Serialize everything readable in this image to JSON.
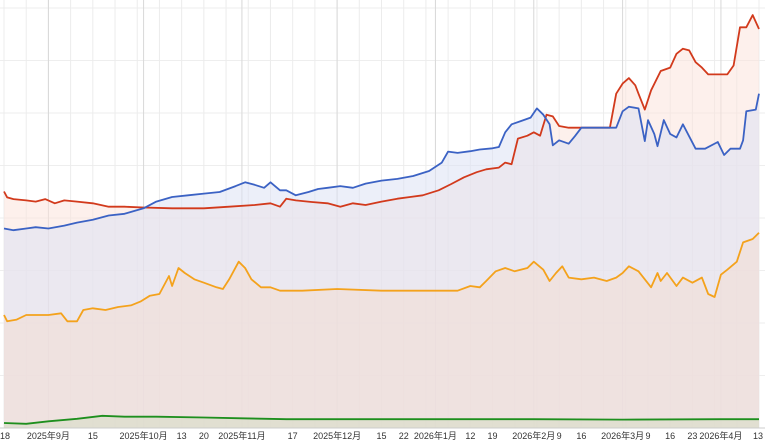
{
  "chart_data": {
    "type": "area",
    "title": "",
    "xlabel": "",
    "ylabel": "",
    "grid": {
      "vertical": true,
      "horizontal": true
    },
    "legend": "none",
    "x_axis": {
      "start": "2025-08-18",
      "end": "2026-04-13",
      "ticks": [
        {
          "date": "2025-08-18",
          "label": "18"
        },
        {
          "date": "2025-09-01",
          "label": "2025年9月"
        },
        {
          "date": "2025-09-15",
          "label": "15"
        },
        {
          "date": "2025-10-01",
          "label": "2025年10月"
        },
        {
          "date": "2025-10-13",
          "label": "13"
        },
        {
          "date": "2025-10-20",
          "label": "20"
        },
        {
          "date": "2025-11-01",
          "label": "2025年11月"
        },
        {
          "date": "2025-11-17",
          "label": "17"
        },
        {
          "date": "2025-12-01",
          "label": "2025年12月"
        },
        {
          "date": "2025-12-15",
          "label": "15"
        },
        {
          "date": "2025-12-22",
          "label": "22"
        },
        {
          "date": "2026-01-01",
          "label": "2026年1月"
        },
        {
          "date": "2026-01-12",
          "label": "12"
        },
        {
          "date": "2026-01-19",
          "label": "19"
        },
        {
          "date": "2026-02-01",
          "label": "2026年2月"
        },
        {
          "date": "2026-02-09",
          "label": "9"
        },
        {
          "date": "2026-02-16",
          "label": "16"
        },
        {
          "date": "2026-03-01",
          "label": "2026年3月"
        },
        {
          "date": "2026-03-09",
          "label": "9"
        },
        {
          "date": "2026-03-16",
          "label": "16"
        },
        {
          "date": "2026-03-23",
          "label": "23"
        },
        {
          "date": "2026-04-01",
          "label": "2026年4月"
        },
        {
          "date": "2026-04-13",
          "label": "13"
        }
      ]
    },
    "y_axis": {
      "range": [
        0,
        100
      ],
      "labels_shown": false
    },
    "series": [
      {
        "color": "#d23a1c",
        "fill": "#fbe3dc",
        "points": [
          [
            "2025-08-18",
            56.3
          ],
          [
            "2025-08-19",
            54.9
          ],
          [
            "2025-08-21",
            54.5
          ],
          [
            "2025-08-25",
            54.2
          ],
          [
            "2025-08-28",
            53.9
          ],
          [
            "2025-08-31",
            54.5
          ],
          [
            "2025-09-03",
            53.5
          ],
          [
            "2025-09-06",
            54.2
          ],
          [
            "2025-09-10",
            53.9
          ],
          [
            "2025-09-15",
            53.5
          ],
          [
            "2025-09-20",
            52.7
          ],
          [
            "2025-09-25",
            52.7
          ],
          [
            "2025-10-01",
            52.5
          ],
          [
            "2025-10-10",
            52.3
          ],
          [
            "2025-10-20",
            52.3
          ],
          [
            "2025-10-28",
            52.7
          ],
          [
            "2025-11-05",
            53.1
          ],
          [
            "2025-11-10",
            53.5
          ],
          [
            "2025-11-13",
            52.7
          ],
          [
            "2025-11-15",
            54.6
          ],
          [
            "2025-11-18",
            54.2
          ],
          [
            "2025-11-23",
            53.8
          ],
          [
            "2025-11-28",
            53.5
          ],
          [
            "2025-12-02",
            52.7
          ],
          [
            "2025-12-06",
            53.5
          ],
          [
            "2025-12-10",
            53.1
          ],
          [
            "2025-12-15",
            53.9
          ],
          [
            "2025-12-20",
            54.6
          ],
          [
            "2025-12-24",
            55.0
          ],
          [
            "2025-12-28",
            55.4
          ],
          [
            "2026-01-02",
            56.6
          ],
          [
            "2026-01-06",
            58.1
          ],
          [
            "2026-01-10",
            59.7
          ],
          [
            "2026-01-14",
            60.9
          ],
          [
            "2026-01-17",
            61.6
          ],
          [
            "2026-01-21",
            62.0
          ],
          [
            "2026-01-23",
            63.2
          ],
          [
            "2026-01-25",
            62.8
          ],
          [
            "2026-01-27",
            68.9
          ],
          [
            "2026-01-30",
            69.6
          ],
          [
            "2026-02-01",
            70.4
          ],
          [
            "2026-02-03",
            69.6
          ],
          [
            "2026-02-05",
            74.6
          ],
          [
            "2026-02-07",
            74.2
          ],
          [
            "2026-02-09",
            71.9
          ],
          [
            "2026-02-12",
            71.5
          ],
          [
            "2026-02-16",
            71.5
          ],
          [
            "2026-02-22",
            71.5
          ],
          [
            "2026-02-25",
            71.5
          ],
          [
            "2026-02-27",
            79.6
          ],
          [
            "2026-03-01",
            82.0
          ],
          [
            "2026-03-03",
            83.3
          ],
          [
            "2026-03-05",
            81.6
          ],
          [
            "2026-03-06",
            79.6
          ],
          [
            "2026-03-08",
            75.8
          ],
          [
            "2026-03-10",
            80.4
          ],
          [
            "2026-03-13",
            85.0
          ],
          [
            "2026-03-16",
            85.8
          ],
          [
            "2026-03-18",
            89.1
          ],
          [
            "2026-03-20",
            90.3
          ],
          [
            "2026-03-22",
            89.9
          ],
          [
            "2026-03-24",
            87.1
          ],
          [
            "2026-03-26",
            85.8
          ],
          [
            "2026-03-28",
            84.2
          ],
          [
            "2026-04-01",
            84.2
          ],
          [
            "2026-04-03",
            84.2
          ],
          [
            "2026-04-05",
            86.3
          ],
          [
            "2026-04-07",
            95.4
          ],
          [
            "2026-04-09",
            95.4
          ],
          [
            "2026-04-11",
            98.3
          ],
          [
            "2026-04-13",
            95.0
          ]
        ]
      },
      {
        "color": "#3b62c4",
        "fill": "#dde2f4",
        "points": [
          [
            "2025-08-18",
            47.5
          ],
          [
            "2025-08-21",
            47.1
          ],
          [
            "2025-08-25",
            47.5
          ],
          [
            "2025-08-28",
            47.8
          ],
          [
            "2025-09-01",
            47.5
          ],
          [
            "2025-09-06",
            48.2
          ],
          [
            "2025-09-10",
            48.9
          ],
          [
            "2025-09-15",
            49.6
          ],
          [
            "2025-09-20",
            50.6
          ],
          [
            "2025-09-25",
            51.0
          ],
          [
            "2025-10-01",
            52.3
          ],
          [
            "2025-10-05",
            53.9
          ],
          [
            "2025-10-10",
            55.0
          ],
          [
            "2025-10-15",
            55.4
          ],
          [
            "2025-10-20",
            55.8
          ],
          [
            "2025-10-25",
            56.2
          ],
          [
            "2025-10-30",
            57.6
          ],
          [
            "2025-11-02",
            58.5
          ],
          [
            "2025-11-05",
            57.9
          ],
          [
            "2025-11-08",
            57.2
          ],
          [
            "2025-11-10",
            58.5
          ],
          [
            "2025-11-13",
            56.6
          ],
          [
            "2025-11-15",
            56.6
          ],
          [
            "2025-11-18",
            55.4
          ],
          [
            "2025-11-22",
            56.2
          ],
          [
            "2025-11-25",
            56.9
          ],
          [
            "2025-11-28",
            57.2
          ],
          [
            "2025-12-02",
            57.6
          ],
          [
            "2025-12-06",
            57.2
          ],
          [
            "2025-12-10",
            58.2
          ],
          [
            "2025-12-15",
            58.9
          ],
          [
            "2025-12-20",
            59.3
          ],
          [
            "2025-12-25",
            60.0
          ],
          [
            "2025-12-30",
            61.2
          ],
          [
            "2026-01-03",
            63.2
          ],
          [
            "2026-01-05",
            65.8
          ],
          [
            "2026-01-08",
            65.5
          ],
          [
            "2026-01-12",
            65.9
          ],
          [
            "2026-01-15",
            66.3
          ],
          [
            "2026-01-19",
            66.6
          ],
          [
            "2026-01-21",
            66.9
          ],
          [
            "2026-01-23",
            70.4
          ],
          [
            "2026-01-25",
            72.3
          ],
          [
            "2026-01-28",
            73.1
          ],
          [
            "2026-01-31",
            73.9
          ],
          [
            "2026-02-02",
            76.1
          ],
          [
            "2026-02-04",
            74.6
          ],
          [
            "2026-02-06",
            72.3
          ],
          [
            "2026-02-07",
            67.3
          ],
          [
            "2026-02-09",
            68.5
          ],
          [
            "2026-02-12",
            67.7
          ],
          [
            "2026-02-14",
            69.5
          ],
          [
            "2026-02-16",
            71.5
          ],
          [
            "2026-02-22",
            71.5
          ],
          [
            "2026-02-27",
            71.5
          ],
          [
            "2026-03-01",
            75.4
          ],
          [
            "2026-03-03",
            76.5
          ],
          [
            "2026-03-06",
            76.1
          ],
          [
            "2026-03-08",
            68.3
          ],
          [
            "2026-03-09",
            73.3
          ],
          [
            "2026-03-11",
            70.0
          ],
          [
            "2026-03-12",
            67.1
          ],
          [
            "2026-03-14",
            73.3
          ],
          [
            "2026-03-16",
            70.0
          ],
          [
            "2026-03-18",
            69.2
          ],
          [
            "2026-03-20",
            72.3
          ],
          [
            "2026-03-24",
            66.5
          ],
          [
            "2026-03-27",
            66.5
          ],
          [
            "2026-03-31",
            68.1
          ],
          [
            "2026-04-02",
            65.0
          ],
          [
            "2026-04-04",
            66.5
          ],
          [
            "2026-04-07",
            66.5
          ],
          [
            "2026-04-08",
            68.5
          ],
          [
            "2026-04-09",
            75.4
          ],
          [
            "2026-04-12",
            75.8
          ],
          [
            "2026-04-13",
            79.6
          ]
        ]
      },
      {
        "color": "#f4a21c",
        "fill": "#f3ddd4",
        "points": [
          [
            "2025-08-18",
            26.9
          ],
          [
            "2025-08-19",
            25.4
          ],
          [
            "2025-08-22",
            25.8
          ],
          [
            "2025-08-25",
            26.9
          ],
          [
            "2025-09-01",
            26.9
          ],
          [
            "2025-09-05",
            27.3
          ],
          [
            "2025-09-07",
            25.4
          ],
          [
            "2025-09-10",
            25.4
          ],
          [
            "2025-09-12",
            28.1
          ],
          [
            "2025-09-15",
            28.5
          ],
          [
            "2025-09-19",
            28.1
          ],
          [
            "2025-09-23",
            28.8
          ],
          [
            "2025-09-27",
            29.2
          ],
          [
            "2025-09-30",
            30.1
          ],
          [
            "2025-10-03",
            31.5
          ],
          [
            "2025-10-06",
            31.9
          ],
          [
            "2025-10-09",
            36.2
          ],
          [
            "2025-10-10",
            33.8
          ],
          [
            "2025-10-12",
            38.1
          ],
          [
            "2025-10-14",
            36.9
          ],
          [
            "2025-10-17",
            35.4
          ],
          [
            "2025-10-20",
            34.6
          ],
          [
            "2025-10-24",
            33.5
          ],
          [
            "2025-10-26",
            33.1
          ],
          [
            "2025-10-28",
            35.4
          ],
          [
            "2025-10-31",
            39.6
          ],
          [
            "2025-11-02",
            38.1
          ],
          [
            "2025-11-04",
            35.4
          ],
          [
            "2025-11-07",
            33.5
          ],
          [
            "2025-11-10",
            33.5
          ],
          [
            "2025-11-13",
            32.7
          ],
          [
            "2025-11-20",
            32.7
          ],
          [
            "2025-12-01",
            33.1
          ],
          [
            "2025-12-15",
            32.7
          ],
          [
            "2026-01-01",
            32.7
          ],
          [
            "2026-01-08",
            32.7
          ],
          [
            "2026-01-12",
            33.8
          ],
          [
            "2026-01-15",
            33.5
          ],
          [
            "2026-01-17",
            35.0
          ],
          [
            "2026-01-20",
            37.3
          ],
          [
            "2026-01-23",
            38.1
          ],
          [
            "2026-01-26",
            37.3
          ],
          [
            "2026-01-30",
            38.1
          ],
          [
            "2026-02-01",
            39.6
          ],
          [
            "2026-02-04",
            37.7
          ],
          [
            "2026-02-06",
            35.0
          ],
          [
            "2026-02-08",
            36.9
          ],
          [
            "2026-02-10",
            38.5
          ],
          [
            "2026-02-12",
            35.8
          ],
          [
            "2026-02-16",
            35.4
          ],
          [
            "2026-02-20",
            35.8
          ],
          [
            "2026-02-24",
            35.0
          ],
          [
            "2026-02-27",
            35.8
          ],
          [
            "2026-03-01",
            36.9
          ],
          [
            "2026-03-03",
            38.5
          ],
          [
            "2026-03-06",
            37.3
          ],
          [
            "2026-03-08",
            35.4
          ],
          [
            "2026-03-10",
            33.5
          ],
          [
            "2026-03-12",
            36.9
          ],
          [
            "2026-03-13",
            35.0
          ],
          [
            "2026-03-15",
            36.9
          ],
          [
            "2026-03-18",
            33.8
          ],
          [
            "2026-03-20",
            35.8
          ],
          [
            "2026-03-23",
            34.6
          ],
          [
            "2026-03-26",
            35.8
          ],
          [
            "2026-03-28",
            31.9
          ],
          [
            "2026-03-30",
            31.2
          ],
          [
            "2026-04-01",
            36.5
          ],
          [
            "2026-04-03",
            37.7
          ],
          [
            "2026-04-06",
            39.6
          ],
          [
            "2026-04-08",
            44.2
          ],
          [
            "2026-04-11",
            45.0
          ],
          [
            "2026-04-13",
            46.5
          ]
        ]
      },
      {
        "color": "#1e8f1e",
        "fill": "#d6dcc4",
        "points": [
          [
            "2025-08-18",
            1.2
          ],
          [
            "2025-08-25",
            1.0
          ],
          [
            "2025-09-01",
            1.6
          ],
          [
            "2025-09-10",
            2.2
          ],
          [
            "2025-09-18",
            2.9
          ],
          [
            "2025-09-25",
            2.7
          ],
          [
            "2025-10-05",
            2.7
          ],
          [
            "2025-10-20",
            2.5
          ],
          [
            "2025-11-01",
            2.3
          ],
          [
            "2025-11-15",
            2.1
          ],
          [
            "2025-12-01",
            2.1
          ],
          [
            "2026-01-01",
            2.1
          ],
          [
            "2026-02-01",
            2.1
          ],
          [
            "2026-03-01",
            2.0
          ],
          [
            "2026-04-01",
            2.1
          ],
          [
            "2026-04-13",
            2.1
          ]
        ]
      }
    ]
  }
}
